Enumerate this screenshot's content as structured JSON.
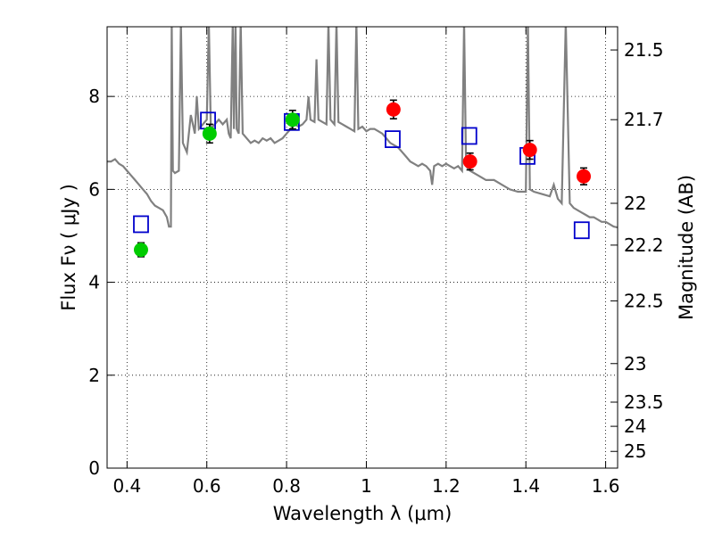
{
  "chart_data": {
    "type": "scatter",
    "xlabel": "Wavelength  λ (μm)",
    "ylabel": "Flux  Fν  ( μJy )",
    "y2label": "Magnitude (AB)",
    "xlim": [
      0.35,
      1.63
    ],
    "ylim": [
      0,
      9.5
    ],
    "grid": true,
    "x_ticks": [
      {
        "value": 0.4,
        "label": "0.4"
      },
      {
        "value": 0.6,
        "label": "0.6"
      },
      {
        "value": 0.8,
        "label": "0.8"
      },
      {
        "value": 1.0,
        "label": "1"
      },
      {
        "value": 1.2,
        "label": "1.2"
      },
      {
        "value": 1.4,
        "label": "1.4"
      },
      {
        "value": 1.6,
        "label": "1.6"
      }
    ],
    "y_ticks": [
      {
        "value": 0,
        "label": "0"
      },
      {
        "value": 2,
        "label": "2"
      },
      {
        "value": 4,
        "label": "4"
      },
      {
        "value": 6,
        "label": "6"
      },
      {
        "value": 8,
        "label": "8"
      }
    ],
    "y2_ticks": [
      {
        "label": "21.5",
        "flux": 9.0
      },
      {
        "label": "21.7",
        "flux": 7.5
      },
      {
        "label": "22",
        "flux": 5.7
      },
      {
        "label": "22.2",
        "flux": 4.8
      },
      {
        "label": "22.5",
        "flux": 3.6
      },
      {
        "label": "23",
        "flux": 2.25
      },
      {
        "label": "23.5",
        "flux": 1.42
      },
      {
        "label": "24",
        "flux": 0.9
      },
      {
        "label": "25",
        "flux": 0.36
      }
    ],
    "series": [
      {
        "kind": "model_spectrum",
        "color": "#808080",
        "points": [
          [
            0.35,
            6.6
          ],
          [
            0.36,
            6.6
          ],
          [
            0.37,
            6.65
          ],
          [
            0.38,
            6.55
          ],
          [
            0.39,
            6.5
          ],
          [
            0.4,
            6.4
          ],
          [
            0.41,
            6.3
          ],
          [
            0.42,
            6.2
          ],
          [
            0.43,
            6.1
          ],
          [
            0.44,
            6.0
          ],
          [
            0.45,
            5.9
          ],
          [
            0.46,
            5.75
          ],
          [
            0.47,
            5.65
          ],
          [
            0.48,
            5.6
          ],
          [
            0.49,
            5.55
          ],
          [
            0.5,
            5.4
          ],
          [
            0.505,
            5.2
          ],
          [
            0.51,
            5.2
          ],
          [
            0.512,
            9.6
          ],
          [
            0.515,
            6.4
          ],
          [
            0.52,
            6.35
          ],
          [
            0.53,
            6.4
          ],
          [
            0.535,
            9.6
          ],
          [
            0.54,
            7.0
          ],
          [
            0.55,
            6.8
          ],
          [
            0.56,
            7.6
          ],
          [
            0.565,
            7.4
          ],
          [
            0.57,
            7.2
          ],
          [
            0.575,
            8.0
          ],
          [
            0.58,
            7.3
          ],
          [
            0.59,
            7.4
          ],
          [
            0.6,
            7.5
          ],
          [
            0.605,
            9.6
          ],
          [
            0.61,
            7.3
          ],
          [
            0.62,
            7.4
          ],
          [
            0.63,
            7.5
          ],
          [
            0.64,
            7.4
          ],
          [
            0.65,
            7.5
          ],
          [
            0.655,
            7.2
          ],
          [
            0.66,
            7.1
          ],
          [
            0.665,
            9.6
          ],
          [
            0.668,
            7.3
          ],
          [
            0.672,
            9.6
          ],
          [
            0.675,
            7.3
          ],
          [
            0.68,
            7.2
          ],
          [
            0.685,
            9.6
          ],
          [
            0.69,
            7.2
          ],
          [
            0.7,
            7.1
          ],
          [
            0.71,
            7.0
          ],
          [
            0.72,
            7.05
          ],
          [
            0.73,
            7.0
          ],
          [
            0.74,
            7.1
          ],
          [
            0.75,
            7.05
          ],
          [
            0.76,
            7.1
          ],
          [
            0.77,
            7.0
          ],
          [
            0.78,
            7.05
          ],
          [
            0.79,
            7.1
          ],
          [
            0.8,
            7.2
          ],
          [
            0.81,
            7.3
          ],
          [
            0.82,
            7.4
          ],
          [
            0.83,
            7.35
          ],
          [
            0.84,
            7.4
          ],
          [
            0.85,
            7.5
          ],
          [
            0.855,
            8.0
          ],
          [
            0.86,
            7.5
          ],
          [
            0.87,
            7.45
          ],
          [
            0.875,
            8.8
          ],
          [
            0.88,
            7.5
          ],
          [
            0.89,
            7.45
          ],
          [
            0.9,
            7.4
          ],
          [
            0.905,
            9.6
          ],
          [
            0.91,
            7.5
          ],
          [
            0.92,
            7.4
          ],
          [
            0.925,
            9.6
          ],
          [
            0.93,
            7.45
          ],
          [
            0.94,
            7.4
          ],
          [
            0.95,
            7.35
          ],
          [
            0.96,
            7.3
          ],
          [
            0.97,
            7.25
          ],
          [
            0.975,
            9.6
          ],
          [
            0.98,
            7.3
          ],
          [
            0.99,
            7.35
          ],
          [
            1.0,
            7.25
          ],
          [
            1.01,
            7.3
          ],
          [
            1.02,
            7.3
          ],
          [
            1.03,
            7.25
          ],
          [
            1.04,
            7.2
          ],
          [
            1.05,
            7.1
          ],
          [
            1.06,
            7.0
          ],
          [
            1.07,
            6.95
          ],
          [
            1.08,
            6.9
          ],
          [
            1.09,
            6.8
          ],
          [
            1.1,
            6.7
          ],
          [
            1.11,
            6.6
          ],
          [
            1.12,
            6.55
          ],
          [
            1.13,
            6.5
          ],
          [
            1.14,
            6.55
          ],
          [
            1.15,
            6.5
          ],
          [
            1.16,
            6.4
          ],
          [
            1.165,
            6.1
          ],
          [
            1.17,
            6.5
          ],
          [
            1.18,
            6.55
          ],
          [
            1.19,
            6.5
          ],
          [
            1.2,
            6.55
          ],
          [
            1.21,
            6.5
          ],
          [
            1.22,
            6.45
          ],
          [
            1.23,
            6.5
          ],
          [
            1.24,
            6.4
          ],
          [
            1.245,
            9.6
          ],
          [
            1.25,
            6.5
          ],
          [
            1.26,
            6.4
          ],
          [
            1.27,
            6.35
          ],
          [
            1.28,
            6.3
          ],
          [
            1.29,
            6.25
          ],
          [
            1.3,
            6.2
          ],
          [
            1.32,
            6.2
          ],
          [
            1.34,
            6.1
          ],
          [
            1.36,
            6.0
          ],
          [
            1.38,
            5.95
          ],
          [
            1.4,
            5.95
          ],
          [
            1.405,
            9.6
          ],
          [
            1.41,
            6.0
          ],
          [
            1.42,
            5.95
          ],
          [
            1.44,
            5.9
          ],
          [
            1.46,
            5.85
          ],
          [
            1.47,
            6.1
          ],
          [
            1.48,
            5.8
          ],
          [
            1.49,
            5.7
          ],
          [
            1.5,
            9.6
          ],
          [
            1.51,
            5.7
          ],
          [
            1.52,
            5.6
          ],
          [
            1.53,
            5.55
          ],
          [
            1.54,
            5.5
          ],
          [
            1.55,
            5.45
          ],
          [
            1.56,
            5.4
          ],
          [
            1.57,
            5.4
          ],
          [
            1.58,
            5.35
          ],
          [
            1.59,
            5.3
          ],
          [
            1.6,
            5.3
          ],
          [
            1.61,
            5.25
          ],
          [
            1.62,
            5.2
          ],
          [
            1.63,
            5.18
          ]
        ]
      },
      {
        "kind": "observed_optical",
        "color": "#00cc00",
        "points": [
          {
            "x": 0.435,
            "y": 4.7,
            "err": 0.15
          },
          {
            "x": 0.607,
            "y": 7.2,
            "err": 0.2
          },
          {
            "x": 0.815,
            "y": 7.5,
            "err": 0.2
          }
        ]
      },
      {
        "kind": "observed_infrared",
        "color": "#ff0000",
        "points": [
          {
            "x": 1.068,
            "y": 7.72,
            "err": 0.2
          },
          {
            "x": 1.26,
            "y": 6.6,
            "err": 0.18
          },
          {
            "x": 1.41,
            "y": 6.85,
            "err": 0.2
          },
          {
            "x": 1.545,
            "y": 6.28,
            "err": 0.18
          }
        ]
      },
      {
        "kind": "model_synthetic",
        "color": "#0000cc",
        "points": [
          {
            "x": 0.435,
            "y": 5.25
          },
          {
            "x": 0.603,
            "y": 7.48
          },
          {
            "x": 0.813,
            "y": 7.45
          },
          {
            "x": 1.066,
            "y": 7.08
          },
          {
            "x": 1.258,
            "y": 7.15
          },
          {
            "x": 1.404,
            "y": 6.72
          },
          {
            "x": 1.54,
            "y": 5.12
          }
        ]
      }
    ]
  }
}
